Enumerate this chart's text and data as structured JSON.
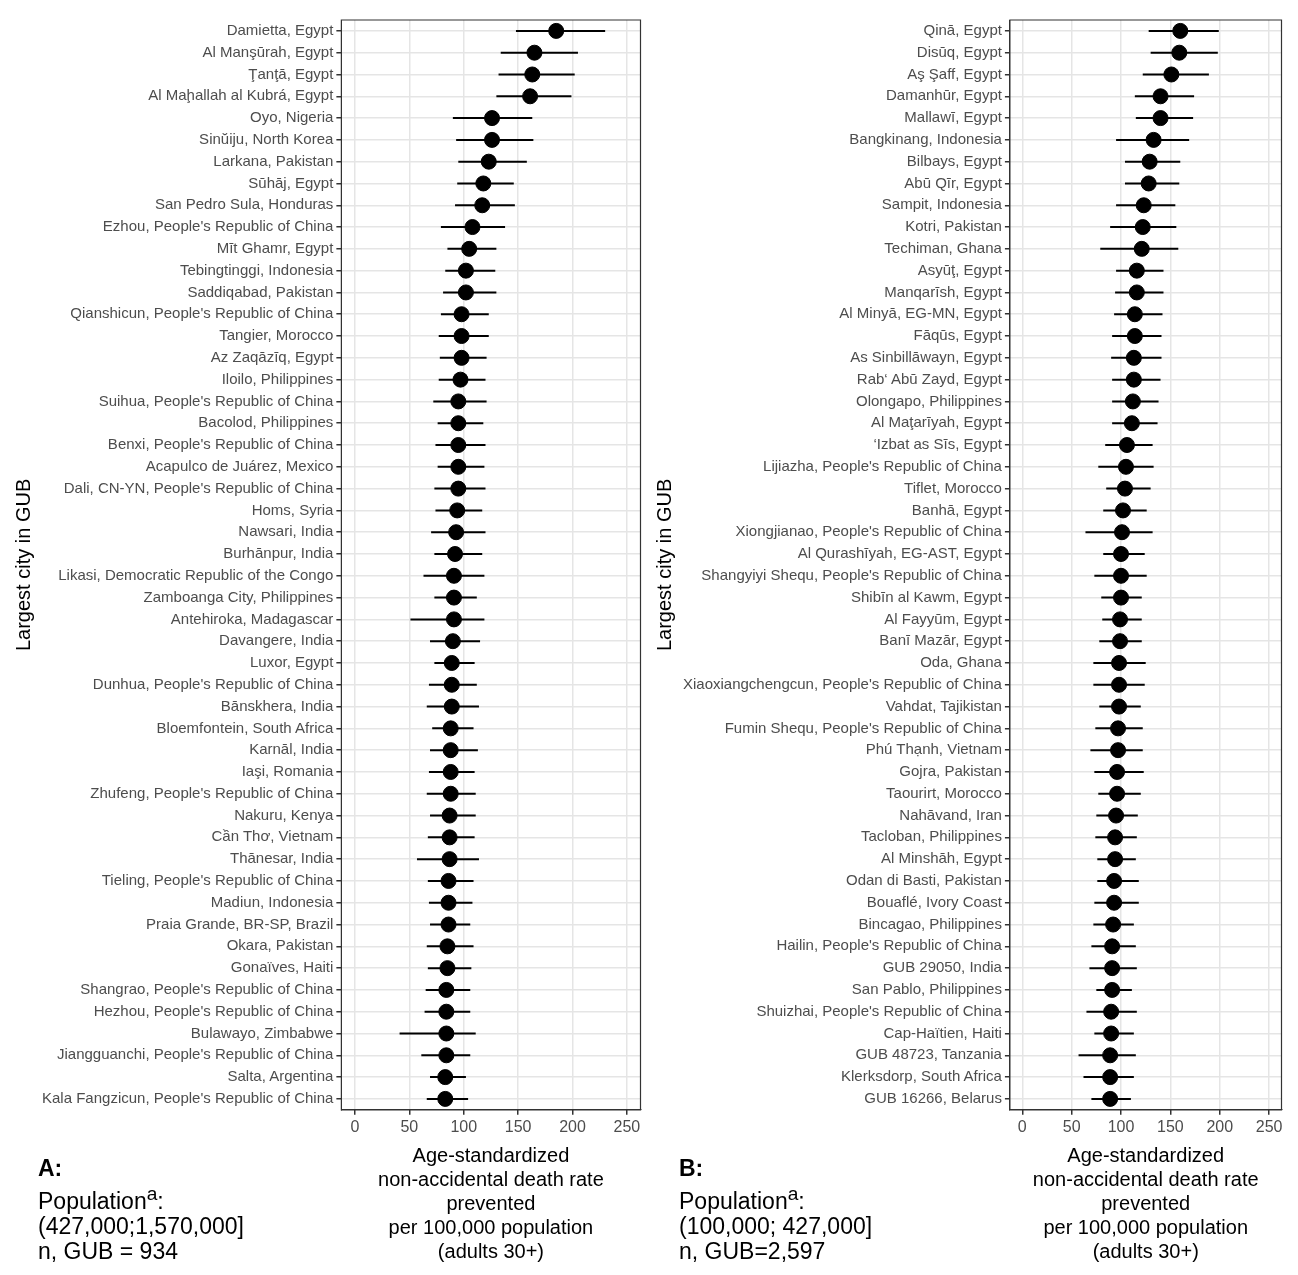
{
  "chart_data": [
    {
      "type": "scatter",
      "orientation": "horizontal",
      "xlabel": "Age-standardized\nnon-accidental death rate\nprevented\nper 100,000 population\n(adults 30+)",
      "ylabel": "Largest city in GUB",
      "annotations": [
        "A:",
        "Population$^{a}$:\n(427,000;1,570,000]\nn, GUB = 934"
      ],
      "xlim": [
        -12.5,
        262.5
      ],
      "xticks": [
        0,
        50,
        100,
        150,
        200,
        250
      ],
      "grid": true,
      "legend": false,
      "marker": "circle",
      "categories": [
        "Damietta, Egypt",
        "Al Manşūrah, Egypt",
        "Ţanţā, Egypt",
        "Al Maḩallah al Kubrá, Egypt",
        "Oyo, Nigeria",
        "Sinŭiju, North Korea",
        "Larkana, Pakistan",
        "Sūhāj, Egypt",
        "San Pedro Sula, Honduras",
        "Ezhou, People's Republic of China",
        "Mīt Ghamr, Egypt",
        "Tebingtinggi, Indonesia",
        "Saddiqabad, Pakistan",
        "Qianshicun, People's Republic of China",
        "Tangier, Morocco",
        "Az Zaqāzīq, Egypt",
        "Iloilo, Philippines",
        "Suihua, People's Republic of China",
        "Bacolod, Philippines",
        "Benxi, People's Republic of China",
        "Acapulco de Juárez, Mexico",
        "Dali, CN-YN, People's Republic of China",
        "Homs, Syria",
        "Nawsari, India",
        "Burhānpur, India",
        "Likasi, Democratic Republic of the Congo",
        "Zamboanga City, Philippines",
        "Antehiroka, Madagascar",
        "Davangere, India",
        "Luxor, Egypt",
        "Dunhua, People's Republic of China",
        "Bānskhera, India",
        "Bloemfontein, South Africa",
        "Karnāl, India",
        "Iaşi, Romania",
        "Zhufeng, People's Republic of China",
        "Nakuru, Kenya",
        "Cần Thơ, Vietnam",
        "Thānesar, India",
        "Tieling, People's Republic of China",
        "Madiun, Indonesia",
        "Praia Grande, BR-SP, Brazil",
        "Okara, Pakistan",
        "Gonaïves, Haiti",
        "Shangrao, People's Republic of China",
        "Hezhou, People's Republic of China",
        "Bulawayo, Zimbabwe",
        "Jiangguanchi, People's Republic of China",
        "Salta, Argentina",
        "Kala Fangzicun, People's Republic of China"
      ],
      "series": [
        {
          "color": "#000000",
          "values": [
            185,
            165,
            163,
            161,
            126,
            126,
            123,
            118,
            117,
            108,
            105,
            102,
            102,
            98,
            98,
            98,
            97,
            95,
            95,
            95,
            95,
            95,
            94,
            93,
            92,
            91,
            91,
            91,
            90,
            89,
            89,
            89,
            88,
            88,
            88,
            88,
            87,
            87,
            87,
            86,
            86,
            86,
            85,
            85,
            84,
            84,
            84,
            84,
            83,
            83
          ],
          "errors": [
            [
              148,
              230
            ],
            [
              134,
              205
            ],
            [
              132,
              202
            ],
            [
              130,
              199
            ],
            [
              90,
              163
            ],
            [
              93,
              164
            ],
            [
              95,
              158
            ],
            [
              94,
              146
            ],
            [
              92,
              147
            ],
            [
              79,
              138
            ],
            [
              85,
              130
            ],
            [
              83,
              129
            ],
            [
              81,
              130
            ],
            [
              79,
              123
            ],
            [
              77,
              123
            ],
            [
              78,
              121
            ],
            [
              77,
              120
            ],
            [
              72,
              121
            ],
            [
              76,
              118
            ],
            [
              74,
              120
            ],
            [
              76,
              119
            ],
            [
              73,
              120
            ],
            [
              74,
              117
            ],
            [
              70,
              120
            ],
            [
              73,
              117
            ],
            [
              63,
              119
            ],
            [
              73,
              112
            ],
            [
              51,
              119
            ],
            [
              69,
              115
            ],
            [
              73,
              110
            ],
            [
              68,
              112
            ],
            [
              66,
              114
            ],
            [
              71,
              109
            ],
            [
              69,
              113
            ],
            [
              68,
              110
            ],
            [
              66,
              111
            ],
            [
              69,
              111
            ],
            [
              67,
              110
            ],
            [
              57,
              114
            ],
            [
              67,
              109
            ],
            [
              68,
              108
            ],
            [
              69,
              106
            ],
            [
              66,
              109
            ],
            [
              67,
              107
            ],
            [
              65,
              106
            ],
            [
              64,
              106
            ],
            [
              41,
              111
            ],
            [
              61,
              106
            ],
            [
              69,
              102
            ],
            [
              66,
              104
            ]
          ]
        }
      ]
    },
    {
      "type": "scatter",
      "orientation": "horizontal",
      "xlabel": "Age-standardized\nnon-accidental death rate\nprevented\nper 100,000 population\n(adults 30+)",
      "ylabel": "Largest city in GUB",
      "annotations": [
        "B:",
        "Population$^{a}$:\n(100,000; 427,000]\nn, GUB=2,597"
      ],
      "xlim": [
        -12.5,
        262.5
      ],
      "xticks": [
        0,
        50,
        100,
        150,
        200,
        250
      ],
      "grid": true,
      "legend": false,
      "marker": "circle",
      "categories": [
        "Qinā, Egypt",
        "Disūq, Egypt",
        "Aş Şaff, Egypt",
        "Damanhūr, Egypt",
        "Mallawī, Egypt",
        "Bangkinang, Indonesia",
        "Bilbays, Egypt",
        "Abū Qīr, Egypt",
        "Sampit, Indonesia",
        "Kotri, Pakistan",
        "Techiman, Ghana",
        "Asyūţ, Egypt",
        "Manqarīsh, Egypt",
        "Al Minyā, EG-MN, Egypt",
        "Fāqūs, Egypt",
        "As Sinbillāwayn, Egypt",
        "Rab‘ Abū Zayd, Egypt",
        "Olongapo, Philippines",
        "Al Maţarīyah, Egypt",
        "‘Izbat as Sīs, Egypt",
        "Lijiazha, People's Republic of China",
        "Tiflet, Morocco",
        "Banhā, Egypt",
        "Xiongjianao, People's Republic of China",
        "Al Qurashīyah, EG-AST, Egypt",
        "Shangyiyi Shequ, People's Republic of China",
        "Shibīn al Kawm, Egypt",
        "Al Fayyūm, Egypt",
        "Banī Mazār, Egypt",
        "Oda, Ghana",
        "Xiaoxiangchengcun, People's Republic of China",
        "Vahdat, Tajikistan",
        "Fumin Shequ, People's Republic of China",
        "Phú Thạnh, Vietnam",
        "Gojra, Pakistan",
        "Taourirt, Morocco",
        "Nahāvand, Iran",
        "Tacloban, Philippines",
        "Al Minshāh, Egypt",
        "Odan di Basti, Pakistan",
        "Bouaflé, Ivory Coast",
        "Bincagao, Philippines",
        "Hailin, People's Republic of China",
        "GUB 29050, India",
        "San Pablo, Philippines",
        "Shuizhai, People's Republic of China",
        "Cap-Haïtien, Haiti",
        "GUB 48723, Tanzania",
        "Klerksdorp, South Africa",
        "GUB 16266, Belarus"
      ],
      "series": [
        {
          "color": "#000000",
          "values": [
            160,
            159,
            151,
            140,
            140,
            133,
            129,
            128,
            123,
            122,
            121,
            116,
            116,
            114,
            114,
            113,
            113,
            112,
            111,
            106,
            105,
            104,
            102,
            101,
            100,
            100,
            100,
            99,
            99,
            98,
            98,
            98,
            97,
            97,
            96,
            96,
            95,
            94,
            94,
            93,
            93,
            92,
            91,
            91,
            91,
            90,
            90,
            89,
            89,
            89
          ],
          "errors": [
            [
              128,
              199
            ],
            [
              130,
              198
            ],
            [
              122,
              189
            ],
            [
              114,
              174
            ],
            [
              115,
              173
            ],
            [
              95,
              169
            ],
            [
              104,
              160
            ],
            [
              104,
              159
            ],
            [
              95,
              155
            ],
            [
              89,
              156
            ],
            [
              79,
              158
            ],
            [
              95,
              143
            ],
            [
              94,
              143
            ],
            [
              93,
              142
            ],
            [
              91,
              141
            ],
            [
              90,
              141
            ],
            [
              91,
              140
            ],
            [
              91,
              138
            ],
            [
              91,
              137
            ],
            [
              84,
              132
            ],
            [
              77,
              133
            ],
            [
              85,
              130
            ],
            [
              82,
              126
            ],
            [
              64,
              132
            ],
            [
              82,
              124
            ],
            [
              73,
              126
            ],
            [
              80,
              121
            ],
            [
              81,
              121
            ],
            [
              78,
              121
            ],
            [
              72,
              125
            ],
            [
              72,
              124
            ],
            [
              78,
              120
            ],
            [
              74,
              122
            ],
            [
              69,
              122
            ],
            [
              73,
              123
            ],
            [
              77,
              120
            ],
            [
              75,
              117
            ],
            [
              74,
              116
            ],
            [
              76,
              115
            ],
            [
              76,
              118
            ],
            [
              73,
              118
            ],
            [
              72,
              113
            ],
            [
              70,
              115
            ],
            [
              68,
              116
            ],
            [
              75,
              111
            ],
            [
              65,
              116
            ],
            [
              73,
              113
            ],
            [
              57,
              115
            ],
            [
              62,
              113
            ],
            [
              70,
              110
            ]
          ]
        }
      ]
    }
  ]
}
